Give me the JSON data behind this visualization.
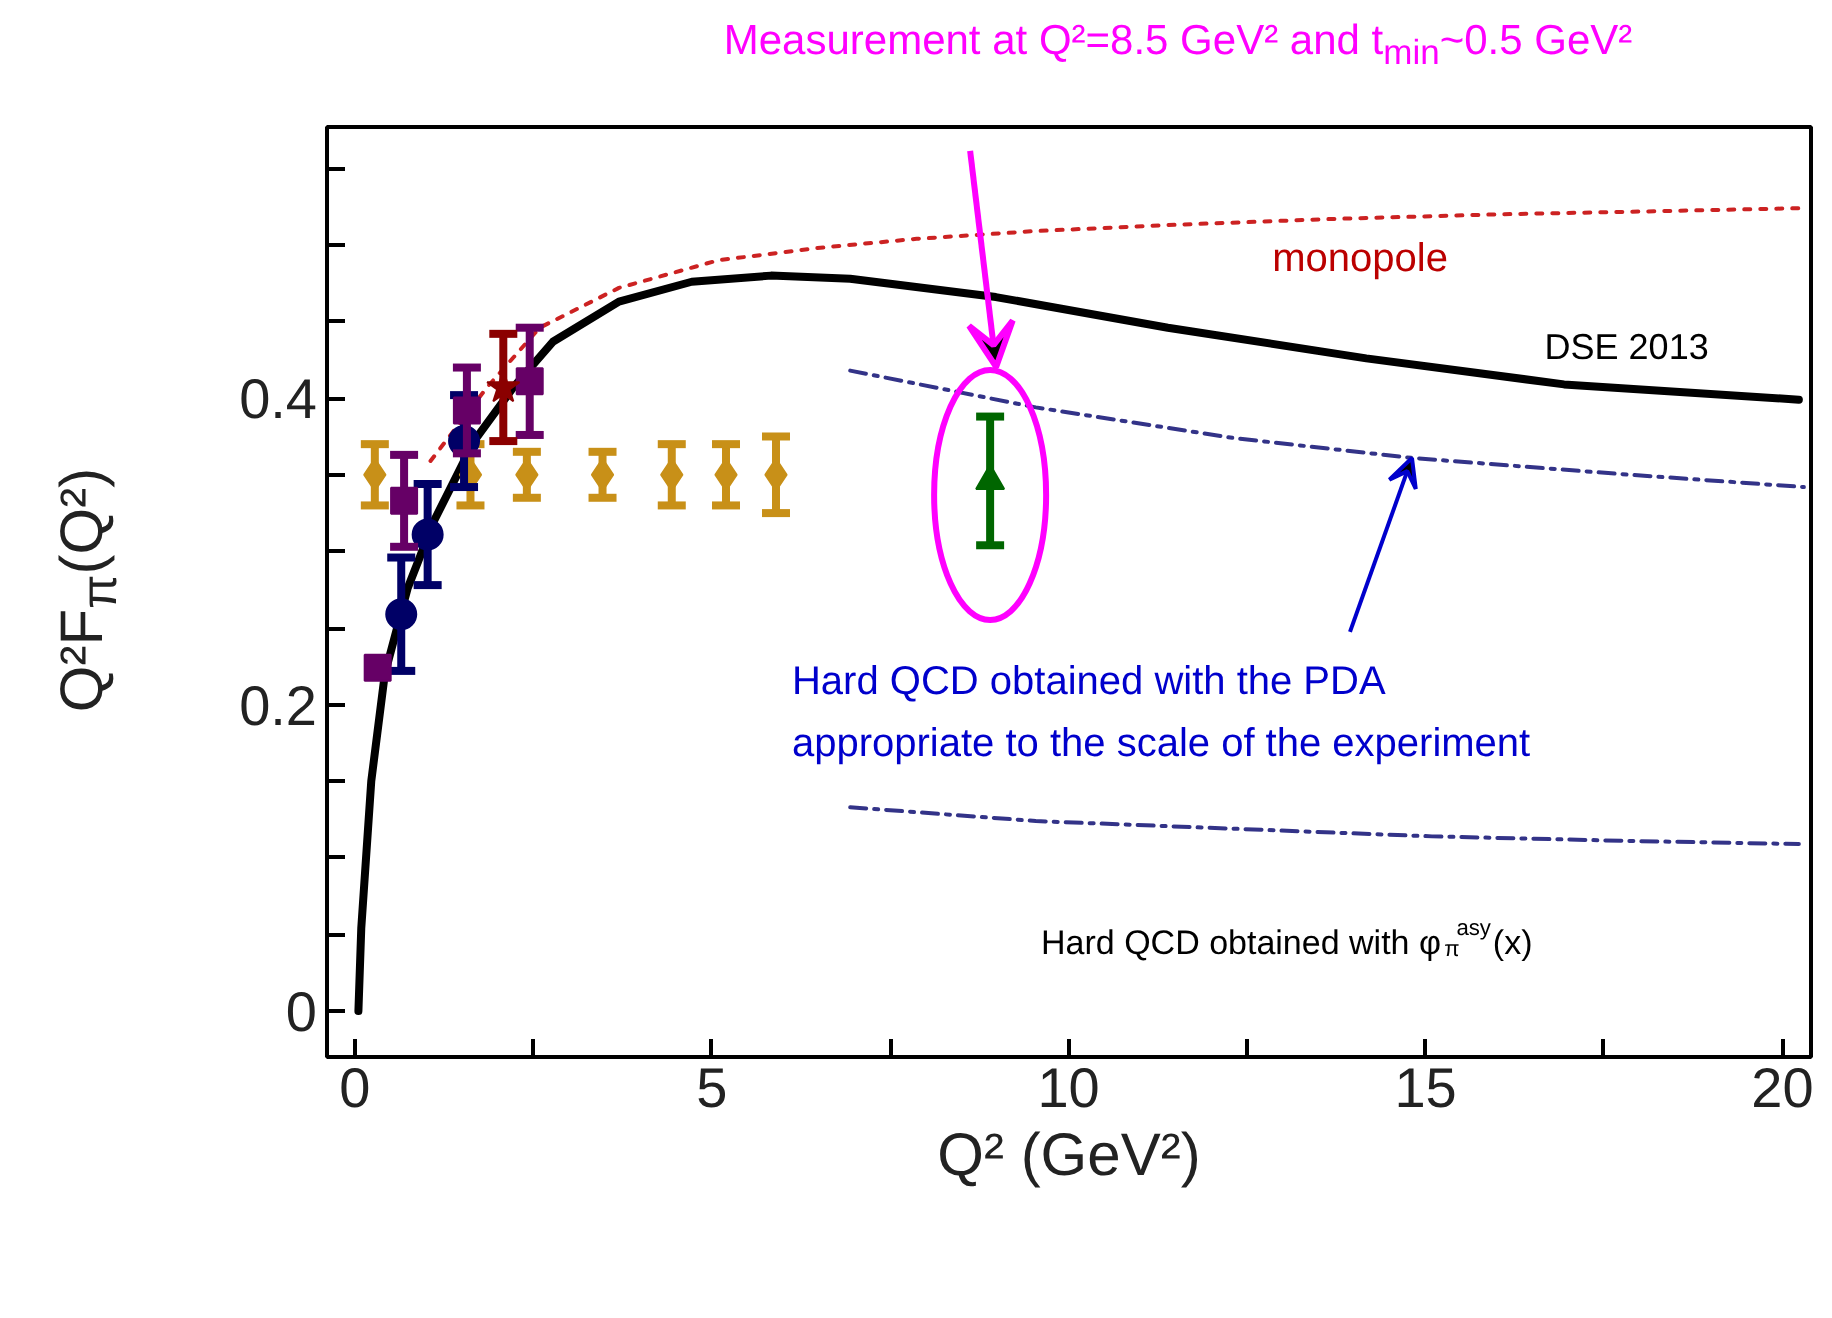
{
  "chart_data": {
    "type": "line",
    "xlabel": "Q² (GeV²)",
    "ylabel": "Q²F$_{π}$(Q²)",
    "xlim": [
      -0.39,
      20.4
    ],
    "ylim": [
      -0.03,
      0.577
    ],
    "xticks": [
      0,
      {
        "value": 2.5,
        "label": null
      },
      5,
      {
        "value": 7.5,
        "label": null
      },
      10,
      {
        "value": 12.5,
        "label": null
      },
      15,
      {
        "value": 17.5,
        "label": null
      },
      20
    ],
    "yticks": [
      0,
      {
        "value": 0.05,
        "label": null
      },
      {
        "value": 0.1,
        "label": null
      },
      {
        "value": 0.15,
        "label": null
      },
      0.2,
      {
        "value": 0.25,
        "label": null
      },
      {
        "value": 0.3,
        "label": null
      },
      {
        "value": 0.35,
        "label": null
      },
      0.4,
      {
        "value": 0.45,
        "label": null
      },
      {
        "value": 0.5,
        "label": null
      },
      {
        "value": 0.55,
        "label": null
      }
    ],
    "grid": false,
    "series": [
      {
        "color": "#cc2222",
        "line_style": "dotted",
        "x": [
          1.06,
          1.85,
          2.59,
          3.7,
          5.09,
          6.48,
          7.87,
          9.5,
          11.39,
          13.7,
          16.02,
          18.2,
          20.23
        ],
        "values": [
          0.359,
          0.407,
          0.446,
          0.472,
          0.49,
          0.498,
          0.504,
          0.509,
          0.513,
          0.517,
          0.52,
          0.522,
          0.524
        ]
      },
      {
        "color": "#000000",
        "line_style": "solid",
        "x": [
          0.05,
          0.09,
          0.23,
          0.42,
          0.74,
          1.11,
          1.67,
          2.22,
          2.78,
          3.7,
          4.72,
          5.83,
          6.94,
          8.98,
          11.39,
          14.17,
          16.94,
          20.23
        ],
        "values": [
          0.0,
          0.054,
          0.15,
          0.22,
          0.276,
          0.32,
          0.372,
          0.407,
          0.437,
          0.463,
          0.476,
          0.48,
          0.478,
          0.466,
          0.446,
          0.426,
          0.409,
          0.399
        ]
      },
      {
        "color": "#333388",
        "line_style": "dashed",
        "x": [
          6.94,
          9.54,
          12.31,
          14.81,
          17.87,
          20.3
        ],
        "values": [
          0.418,
          0.394,
          0.374,
          0.361,
          0.35,
          0.342
        ]
      },
      {
        "color": "#333388",
        "line_style": "dashed",
        "x": [
          6.94,
          9.54,
          12.31,
          15.09,
          17.87,
          20.23
        ],
        "values": [
          0.133,
          0.124,
          0.119,
          0.114,
          0.111,
          0.109
        ]
      },
      {
        "type": "scatter",
        "marker": "diamond",
        "color": "#c89018",
        "x": [
          0.28,
          1.62,
          2.41,
          3.47,
          4.44,
          5.2,
          5.9
        ],
        "values": [
          0.35,
          0.35,
          0.35,
          0.35,
          0.35,
          0.35,
          0.35
        ],
        "errors": [
          0.02,
          0.02,
          0.015,
          0.015,
          0.02,
          0.02,
          0.025
        ]
      },
      {
        "type": "scatter",
        "marker": "circle",
        "color": "#000066",
        "x": [
          0.65,
          1.02,
          1.53
        ],
        "values": [
          0.259,
          0.311,
          0.372
        ],
        "errors": [
          0.037,
          0.033,
          0.03
        ]
      },
      {
        "type": "scatter",
        "marker": "square",
        "color": "#660066",
        "x": [
          0.32,
          0.69,
          1.57,
          2.45
        ],
        "values": [
          0.224,
          0.333,
          0.392,
          0.411
        ],
        "errors": [
          null,
          0.03,
          0.028,
          0.035
        ]
      },
      {
        "type": "scatter",
        "marker": "star",
        "color": "#8b0000",
        "x": [
          2.08
        ],
        "values": [
          0.407
        ],
        "errors": [
          0.035
        ]
      },
      {
        "type": "scatter",
        "marker": "triangle",
        "color": "#006600",
        "x": [
          8.9
        ],
        "values": [
          0.346
        ],
        "errors": [
          0.042
        ]
      }
    ],
    "annotations": [
      "Measurement at Q²=8.5 GeV² and t$_{min}$~0.5 GeV²",
      {
        "text": "Hard QCD obtained with the PDA\nappropriate to the scale of the experiment",
        "x": 14.81,
        "y": 0.361
      },
      "monopole",
      "DSE 2013",
      "Hard QCD obtained with φ$_{π}$$^{asy}$(x)"
    ]
  }
}
